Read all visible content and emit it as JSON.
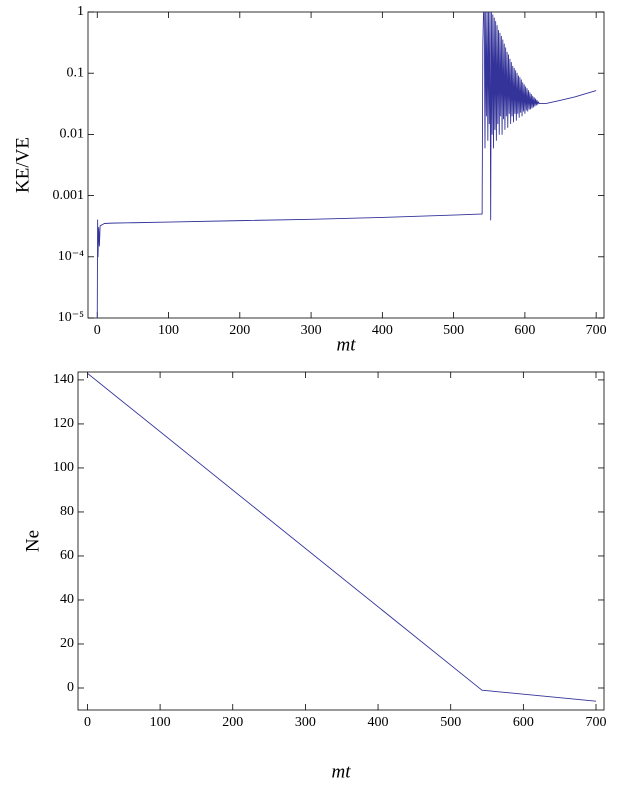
{
  "chart_data": [
    {
      "type": "line",
      "xlabel": "mt",
      "ylabel": "KE/VE",
      "yscale": "log",
      "color": "#33339a",
      "xlim": [
        -13,
        711
      ],
      "xticks": [
        0,
        100,
        200,
        300,
        400,
        500,
        600,
        700
      ],
      "ylim": [
        1e-05,
        1
      ],
      "yticks": [
        {
          "value": 1e-05,
          "label": "10⁻⁵"
        },
        {
          "value": 0.0001,
          "label": "10⁻⁴"
        },
        0.001,
        0.01,
        0.1,
        1
      ],
      "x": [
        0,
        0.5,
        1,
        2,
        3,
        4,
        6,
        8,
        10,
        20,
        50,
        100,
        200,
        300,
        400,
        500,
        538,
        540,
        541,
        542,
        543,
        544,
        545,
        546,
        547,
        548,
        549,
        550,
        551,
        552,
        553,
        554,
        555,
        556,
        557,
        558,
        559,
        560,
        561,
        562,
        563,
        564,
        565,
        566,
        567,
        568,
        569,
        570,
        571,
        572,
        573,
        574,
        575,
        576,
        577,
        578,
        579,
        580,
        581,
        582,
        583,
        584,
        585,
        586,
        587,
        588,
        589,
        590,
        591,
        592,
        593,
        594,
        595,
        596,
        597,
        598,
        599,
        600,
        601,
        602,
        603,
        604,
        605,
        606,
        607,
        608,
        609,
        610,
        611,
        612,
        613,
        614,
        615,
        616,
        617,
        618,
        619,
        620,
        630,
        650,
        670,
        700
      ],
      "values": [
        1e-05,
        0.0004,
        0.0001,
        0.0003,
        0.00015,
        0.00032,
        0.00033,
        0.00034,
        0.00035,
        0.000355,
        0.00036,
        0.00037,
        0.00039,
        0.00041,
        0.00044,
        0.00048,
        0.0005,
        0.0005,
        0.3,
        1,
        1,
        0.006,
        1,
        0.02,
        1,
        0.008,
        1,
        0.015,
        1,
        0.0004,
        1,
        0.01,
        0.9,
        0.006,
        0.8,
        0.012,
        0.7,
        0.008,
        0.6,
        0.015,
        0.5,
        0.01,
        0.45,
        0.02,
        0.4,
        0.01,
        0.35,
        0.018,
        0.3,
        0.012,
        0.26,
        0.02,
        0.22,
        0.013,
        0.2,
        0.022,
        0.17,
        0.015,
        0.15,
        0.02,
        0.13,
        0.016,
        0.12,
        0.022,
        0.11,
        0.017,
        0.1,
        0.022,
        0.09,
        0.019,
        0.085,
        0.023,
        0.078,
        0.02,
        0.07,
        0.024,
        0.065,
        0.022,
        0.06,
        0.025,
        0.056,
        0.024,
        0.052,
        0.026,
        0.048,
        0.026,
        0.045,
        0.027,
        0.042,
        0.028,
        0.04,
        0.029,
        0.038,
        0.03,
        0.036,
        0.031,
        0.034,
        0.032,
        0.032,
        0.036,
        0.041,
        0.052
      ]
    },
    {
      "type": "line",
      "xlabel": "mt",
      "ylabel": "Ne",
      "color": "#33339a",
      "xlim": [
        -13,
        711
      ],
      "xticks": [
        0,
        100,
        200,
        300,
        400,
        500,
        600,
        700
      ],
      "ylim": [
        -10,
        143.6
      ],
      "yticks": [
        0,
        20,
        40,
        60,
        80,
        100,
        120,
        140
      ],
      "x": [
        0,
        543,
        700
      ],
      "values": [
        143,
        -1,
        -6
      ]
    }
  ]
}
